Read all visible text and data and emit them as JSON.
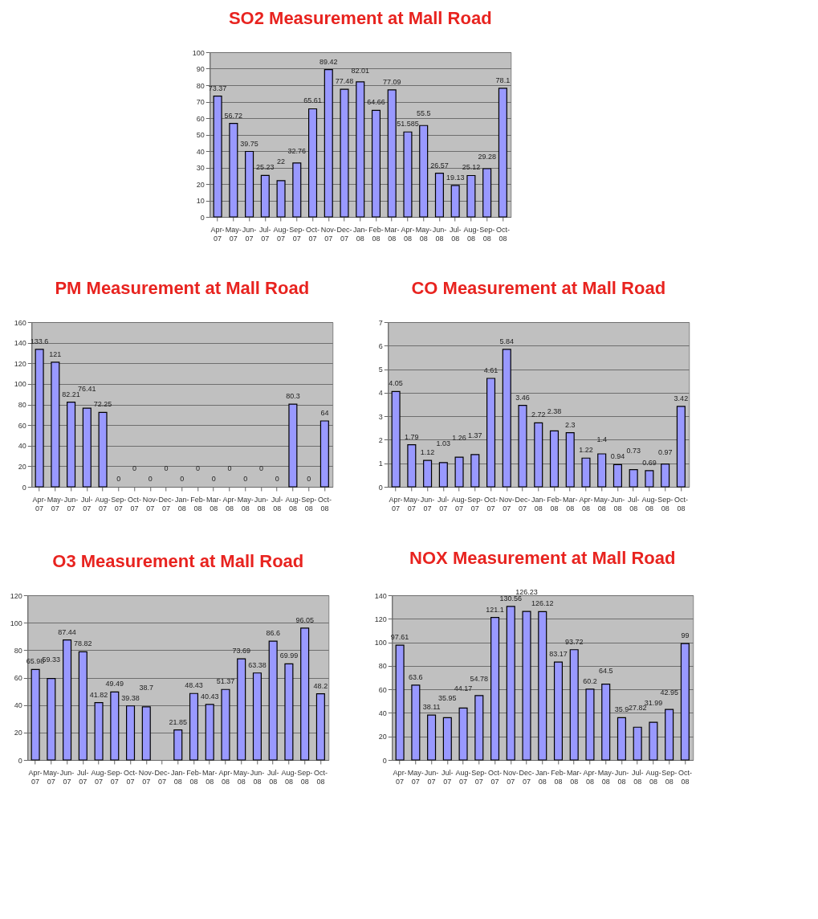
{
  "chart_data": [
    {
      "type": "bar",
      "title": "SO2 Measurement at Mall Road",
      "categories": [
        "Apr-07",
        "May-07",
        "Jun-07",
        "Jul-07",
        "Aug-07",
        "Sep-07",
        "Oct-07",
        "Nov-07",
        "Dec-07",
        "Jan-08",
        "Feb-08",
        "Mar-08",
        "Apr-08",
        "May-08",
        "Jun-08",
        "Jul-08",
        "Aug-08",
        "Sep-08",
        "Oct-08"
      ],
      "values": [
        73.37,
        56.72,
        39.75,
        25.23,
        22,
        32.76,
        65.61,
        89.42,
        77.48,
        82.01,
        64.66,
        77.09,
        51.585,
        55.5,
        26.57,
        19.13,
        25.12,
        29.28,
        78.1
      ],
      "color": "#9999ff",
      "ylim": [
        0,
        100
      ],
      "yticks": [
        0,
        10,
        20,
        30,
        40,
        50,
        60,
        70,
        80,
        90,
        100
      ],
      "grid": "y",
      "data_labels": true
    },
    {
      "type": "bar",
      "title": "PM Measurement at Mall Road",
      "categories": [
        "Apr-07",
        "May-07",
        "Jun-07",
        "Jul-07",
        "Aug-07",
        "Sep-07",
        "Oct-07",
        "Nov-07",
        "Dec-07",
        "Jan-08",
        "Feb-08",
        "Mar-08",
        "Apr-08",
        "May-08",
        "Jun-08",
        "Jul-08",
        "Aug-08",
        "Sep-08",
        "Oct-08"
      ],
      "values": [
        133.6,
        121,
        82.21,
        76.41,
        72.25,
        0,
        0,
        0,
        0,
        0,
        0,
        0,
        0,
        0,
        0,
        0,
        80.3,
        0,
        64
      ],
      "color": "#9999ff",
      "ylim": [
        0,
        160
      ],
      "yticks": [
        0,
        20,
        40,
        60,
        80,
        100,
        120,
        140,
        160
      ],
      "grid": "y",
      "data_labels": true
    },
    {
      "type": "bar",
      "title": "CO Measurement at Mall Road",
      "categories": [
        "Apr-07",
        "May-07",
        "Jun-07",
        "Jul-07",
        "Aug-07",
        "Sep-07",
        "Oct-07",
        "Nov-07",
        "Dec-07",
        "Jan-08",
        "Feb-08",
        "Mar-08",
        "Apr-08",
        "May-08",
        "Jun-08",
        "Jul-08",
        "Aug-08",
        "Sep-08",
        "Oct-08"
      ],
      "values": [
        4.05,
        1.79,
        1.12,
        1.03,
        1.26,
        1.37,
        4.61,
        5.84,
        3.46,
        2.72,
        2.38,
        2.3,
        1.22,
        1.4,
        0.94,
        0.73,
        0.69,
        0.97,
        3.42
      ],
      "color": "#9999ff",
      "ylim": [
        0,
        7
      ],
      "yticks": [
        0,
        1,
        2,
        3,
        4,
        5,
        6,
        7
      ],
      "grid": "y",
      "data_labels": true
    },
    {
      "type": "bar",
      "title": "O3 Measurement at Mall Road",
      "categories": [
        "Apr-07",
        "May-07",
        "Jun-07",
        "Jul-07",
        "Aug-07",
        "Sep-07",
        "Oct-07",
        "Nov-07",
        "Dec-07",
        "Jan-08",
        "Feb-08",
        "Mar-08",
        "Apr-08",
        "May-08",
        "Jun-08",
        "Jul-08",
        "Aug-08",
        "Sep-08",
        "Oct-08"
      ],
      "values": [
        65.98,
        59.33,
        87.44,
        78.82,
        41.82,
        49.49,
        39.38,
        38.7,
        null,
        21.85,
        48.43,
        40.43,
        51.37,
        73.69,
        63.38,
        86.6,
        69.99,
        96.05,
        48.2
      ],
      "color": "#9999ff",
      "ylim": [
        0,
        120
      ],
      "yticks": [
        0,
        20,
        40,
        60,
        80,
        100,
        120
      ],
      "grid": "y",
      "data_labels": true
    },
    {
      "type": "bar",
      "title": "NOX Measurement at Mall Road",
      "categories": [
        "Apr-07",
        "May-07",
        "Jun-07",
        "Jul-07",
        "Aug-07",
        "Sep-07",
        "Oct-07",
        "Nov-07",
        "Dec-07",
        "Jan-08",
        "Feb-08",
        "Mar-08",
        "Apr-08",
        "May-08",
        "Jun-08",
        "Jul-08",
        "Aug-08",
        "Sep-08",
        "Oct-08"
      ],
      "values": [
        97.61,
        63.6,
        38.11,
        35.95,
        44.17,
        54.78,
        121.1,
        130.56,
        126.23,
        126.12,
        83.17,
        93.72,
        60.2,
        64.5,
        35.9,
        27.82,
        31.99,
        42.95,
        99
      ],
      "color": "#9999ff",
      "ylim": [
        0,
        140
      ],
      "yticks": [
        0,
        20,
        40,
        60,
        80,
        100,
        120,
        140
      ],
      "grid": "y",
      "data_labels": true
    }
  ]
}
